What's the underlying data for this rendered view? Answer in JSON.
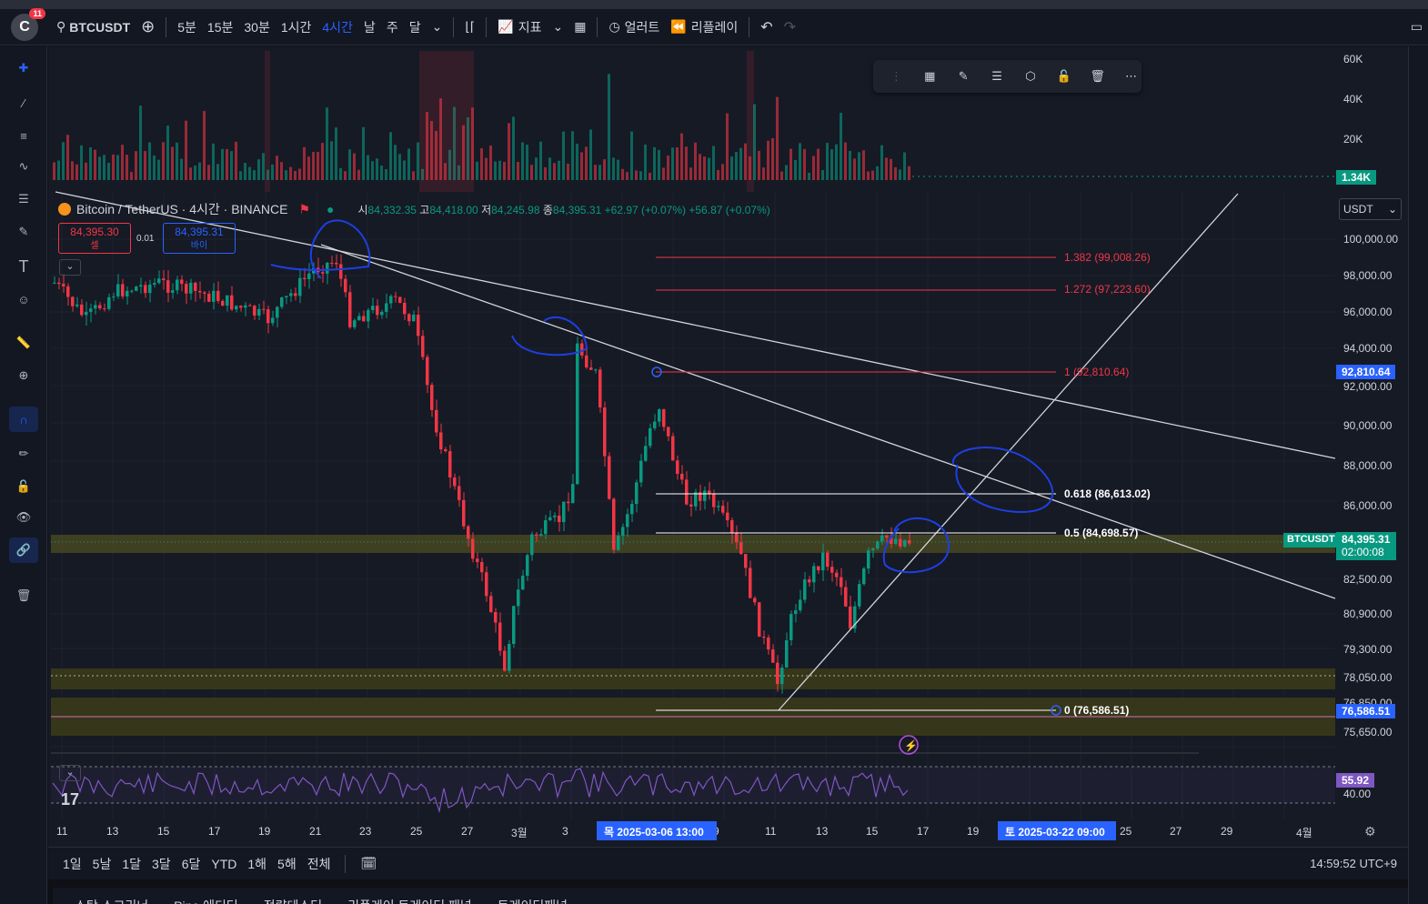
{
  "app": {
    "avatar_letter": "C",
    "notification_count": "11",
    "symbol": "BTCUSDT"
  },
  "toolbar": {
    "timeframes": [
      "5분",
      "15분",
      "30분",
      "1시간",
      "4시간",
      "날",
      "주",
      "달"
    ],
    "active_timeframe": "4시간",
    "indicators_label": "지표",
    "alert_label": "얼러트",
    "replay_label": "리플레이"
  },
  "legend": {
    "title": "Bitcoin / TetherUS · 4시간 · BINANCE",
    "open_label": "시",
    "open": "84,332.35",
    "high_label": "고",
    "high": "84,418.00",
    "low_label": "저",
    "low": "84,245.98",
    "close_label": "종",
    "close": "84,395.31",
    "change": "+62.97 (+0.07%)",
    "change2": "+56.87 (+0.07%)"
  },
  "trade": {
    "sell_price": "84,395.30",
    "sell_label": "셀",
    "spread": "0.01",
    "buy_price": "84,395.31",
    "buy_label": "바이"
  },
  "currency": "USDT",
  "volume_axis": [
    "60K",
    "40K",
    "20K"
  ],
  "volume_last": "1.34K",
  "price_axis": [
    "100,000.00",
    "98,000.00",
    "96,000.00",
    "94,000.00",
    "92,000.00",
    "90,000.00",
    "88,000.00",
    "86,000.00",
    "82,500.00",
    "80,900.00",
    "79,300.00",
    "78,050.00",
    "75,650.00"
  ],
  "price_tags": {
    "fib_top": "92,810.64",
    "current_symbol": "BTCUSDT",
    "current_price": "84,395.31",
    "countdown": "02:00:08",
    "fib_bottom": "76,586.51",
    "hidden_partial": "76,850.00"
  },
  "fib_levels": [
    {
      "label": "1.382 (99,008.26)",
      "color": "#f23645"
    },
    {
      "label": "1.272 (97,223.60)",
      "color": "#f23645"
    },
    {
      "label": "1 (92,810.64)",
      "color": "#f23645"
    },
    {
      "label": "0.618 (86,613.02)",
      "color": "#ffffff"
    },
    {
      "label": "0.5 (84,698.57)",
      "color": "#ffffff"
    },
    {
      "label": "0 (76,586.51)",
      "color": "#ffffff"
    }
  ],
  "rsi": {
    "value": "55.92",
    "level": "40.00"
  },
  "time_axis": [
    "11",
    "13",
    "15",
    "17",
    "19",
    "21",
    "23",
    "25",
    "27",
    "3월",
    "3",
    "9",
    "11",
    "13",
    "15",
    "17",
    "19",
    "25",
    "27",
    "29",
    "4월"
  ],
  "time_tags": {
    "left": "목 2025-03-06   13:00",
    "right": "토 2025-03-22   09:00"
  },
  "ranges": [
    "1일",
    "5날",
    "1달",
    "3달",
    "6달",
    "YTD",
    "1해",
    "5해",
    "전체"
  ],
  "clock": "14:59:52 UTC+9",
  "panel_tabs": [
    "스탁 스크리너",
    "Pine 에디터",
    "전략테스터",
    "리플레이 트레이딩 패널",
    "트레이딩패널"
  ]
}
